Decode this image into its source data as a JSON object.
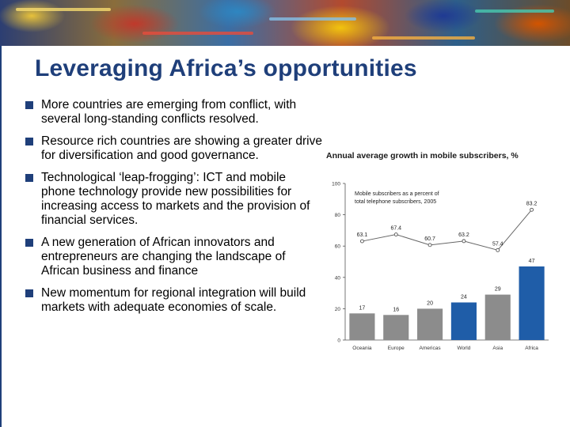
{
  "slide": {
    "title": "Leveraging Africa’s opportunities",
    "bullets": [
      "More countries are emerging from conflict, with several long-standing conflicts resolved.",
      "Resource rich countries are showing a greater drive for diversification and good governance.",
      "Technological ‘leap-frogging’:  ICT and mobile phone technology provide new possibilities for increasing access to markets and the provision of financial services.",
      "A new generation of African innovators and entrepreneurs are changing the landscape of African business and finance",
      "New momentum for regional integration will build markets with adequate economies of scale."
    ],
    "chart_heading": "Annual average growth in mobile subscribers, %"
  },
  "colors": {
    "title": "#1f3f7a",
    "bullet": "#1f3f7a",
    "bar_gray": "#8c8c8c",
    "bar_blue": "#1f5da8"
  },
  "chart_data": {
    "type": "bar",
    "title": "Annual average growth in mobile subscribers, %",
    "categories": [
      "Oceania",
      "Europe",
      "Americas",
      "World",
      "Asia",
      "Africa"
    ],
    "series": [
      {
        "type": "bar",
        "values": [
          17,
          16,
          20,
          24,
          29,
          47
        ],
        "colors": [
          "#8c8c8c",
          "#8c8c8c",
          "#8c8c8c",
          "#1f5da8",
          "#8c8c8c",
          "#1f5da8"
        ]
      },
      {
        "type": "line",
        "name": "Mobile subscribers as a percent of total telephone subscribers, 2005",
        "values": [
          63.1,
          67.4,
          60.7,
          63.2,
          57.4,
          83.2
        ]
      }
    ],
    "legend_text": "Mobile subscribers as a percent of total telephone subscribers, 2005",
    "ylim": [
      0,
      100
    ],
    "yticks": [
      0,
      20,
      40,
      60,
      80,
      100
    ]
  }
}
